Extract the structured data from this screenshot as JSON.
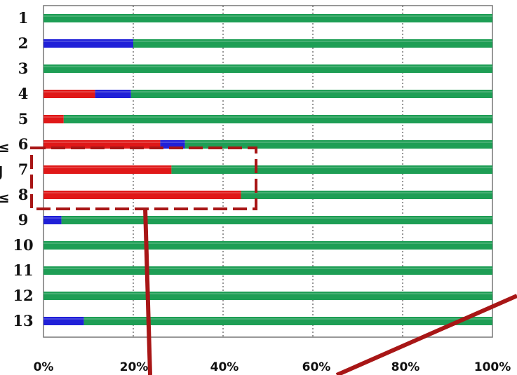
{
  "chart_data": {
    "type": "bar",
    "orientation": "horizontal",
    "stacked": true,
    "categories": [
      "1",
      "2",
      "3",
      "4",
      "5",
      "6",
      "7",
      "8",
      "9",
      "10",
      "11",
      "12",
      "13"
    ],
    "series": [
      {
        "color": "#e01818",
        "values": [
          0,
          0,
          0,
          11.5,
          4.5,
          26,
          28.5,
          44,
          0,
          0,
          0,
          0,
          0
        ]
      },
      {
        "color": "#2020d8",
        "values": [
          0,
          20,
          0,
          8,
          0,
          5.5,
          0,
          0,
          4,
          0,
          0,
          0,
          9
        ]
      },
      {
        "color": "#1e9e55",
        "values": [
          100,
          80,
          100,
          80.5,
          95.5,
          68.5,
          71.5,
          56,
          96,
          100,
          100,
          100,
          91
        ]
      }
    ],
    "xlim": [
      0,
      100
    ],
    "xticks": [
      "0%",
      "20%",
      "40%",
      "60%",
      "80%",
      "100%"
    ],
    "grid": true
  },
  "clipped_left_labels": [
    "≤",
    "J",
    "≤"
  ]
}
